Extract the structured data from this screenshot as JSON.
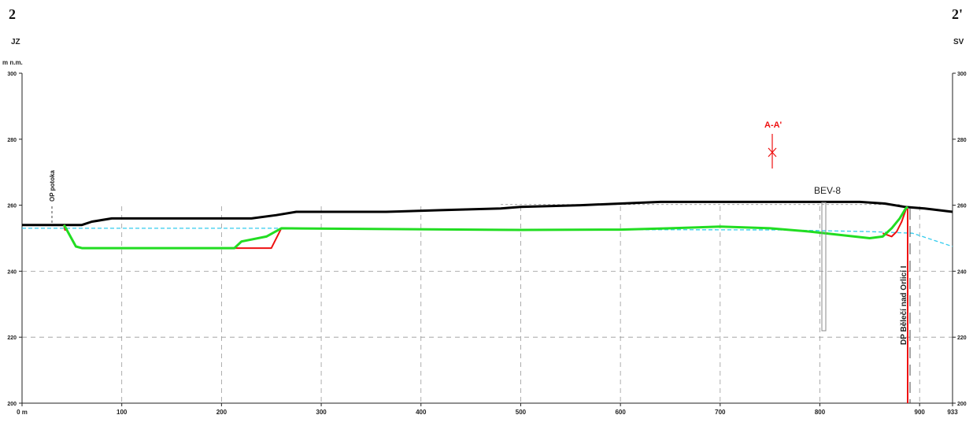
{
  "header": {
    "left_mark": "2",
    "right_mark": "2'",
    "left_direction": "JZ",
    "right_direction": "SV",
    "unit_label": "m n.m."
  },
  "labels": {
    "section_marker": "A-A'",
    "borehole": "BEV-8",
    "left_boundary": "OP potoka",
    "right_boundary": "DP Bělečí nad Orlicí I"
  },
  "colors": {
    "terrain": "#000000",
    "base_proposed": "#22dd22",
    "base_existing": "#ee1111",
    "water_level": "#33ccee",
    "grid": "#999999",
    "marker": "#ee1111"
  },
  "chart_data": {
    "type": "line",
    "xlabel": "",
    "ylabel": "m n.m.",
    "xlim": [
      0,
      933
    ],
    "ylim": [
      200,
      300
    ],
    "x_ticks": [
      {
        "v": 0,
        "label": "0 m"
      },
      {
        "v": 100,
        "label": "100"
      },
      {
        "v": 200,
        "label": "200"
      },
      {
        "v": 300,
        "label": "300"
      },
      {
        "v": 400,
        "label": "400"
      },
      {
        "v": 500,
        "label": "500"
      },
      {
        "v": 600,
        "label": "600"
      },
      {
        "v": 700,
        "label": "700"
      },
      {
        "v": 800,
        "label": "800"
      },
      {
        "v": 900,
        "label": "900"
      },
      {
        "v": 933,
        "label": "933"
      }
    ],
    "y_ticks": [
      200,
      220,
      240,
      260,
      280,
      300
    ],
    "series": [
      {
        "key": "terrain",
        "points": [
          [
            0,
            254
          ],
          [
            60,
            254
          ],
          [
            70,
            255
          ],
          [
            90,
            256
          ],
          [
            230,
            256
          ],
          [
            255,
            257
          ],
          [
            275,
            258
          ],
          [
            365,
            258
          ],
          [
            420,
            258.5
          ],
          [
            480,
            259
          ],
          [
            500,
            259.5
          ],
          [
            560,
            260
          ],
          [
            640,
            261
          ],
          [
            750,
            261
          ],
          [
            840,
            261
          ],
          [
            865,
            260.5
          ],
          [
            885,
            259.5
          ],
          [
            905,
            259
          ],
          [
            933,
            258
          ]
        ]
      },
      {
        "key": "water",
        "points": [
          [
            0,
            253
          ],
          [
            270,
            253
          ],
          [
            400,
            252.7
          ],
          [
            600,
            252.6
          ],
          [
            760,
            252.5
          ],
          [
            850,
            252
          ],
          [
            893,
            251.5
          ],
          [
            933,
            247.5
          ]
        ]
      },
      {
        "key": "existing_a",
        "points": [
          [
            42,
            254
          ],
          [
            43,
            252.5
          ],
          [
            45,
            252.5
          ]
        ]
      },
      {
        "key": "existing_b",
        "points": [
          [
            213,
            247
          ],
          [
            230,
            247
          ],
          [
            250,
            247
          ],
          [
            260,
            253
          ]
        ]
      },
      {
        "key": "existing_c",
        "points": [
          [
            863,
            251.5
          ],
          [
            872,
            250.5
          ],
          [
            877,
            252
          ],
          [
            882,
            255
          ],
          [
            886,
            258.5
          ],
          [
            888,
            259.5
          ]
        ]
      },
      {
        "key": "proposed",
        "points": [
          [
            42,
            254
          ],
          [
            44,
            253
          ],
          [
            54,
            247.5
          ],
          [
            60,
            247
          ],
          [
            120,
            247
          ],
          [
            200,
            247
          ],
          [
            213,
            247
          ],
          [
            220,
            249
          ],
          [
            245,
            250.5
          ],
          [
            260,
            253
          ],
          [
            500,
            252.5
          ],
          [
            600,
            252.6
          ],
          [
            650,
            253
          ],
          [
            700,
            253.5
          ],
          [
            750,
            253
          ],
          [
            790,
            252
          ],
          [
            850,
            250
          ],
          [
            863,
            250.5
          ],
          [
            872,
            253
          ],
          [
            880,
            256
          ],
          [
            886,
            259
          ],
          [
            888,
            259.5
          ]
        ]
      }
    ]
  }
}
